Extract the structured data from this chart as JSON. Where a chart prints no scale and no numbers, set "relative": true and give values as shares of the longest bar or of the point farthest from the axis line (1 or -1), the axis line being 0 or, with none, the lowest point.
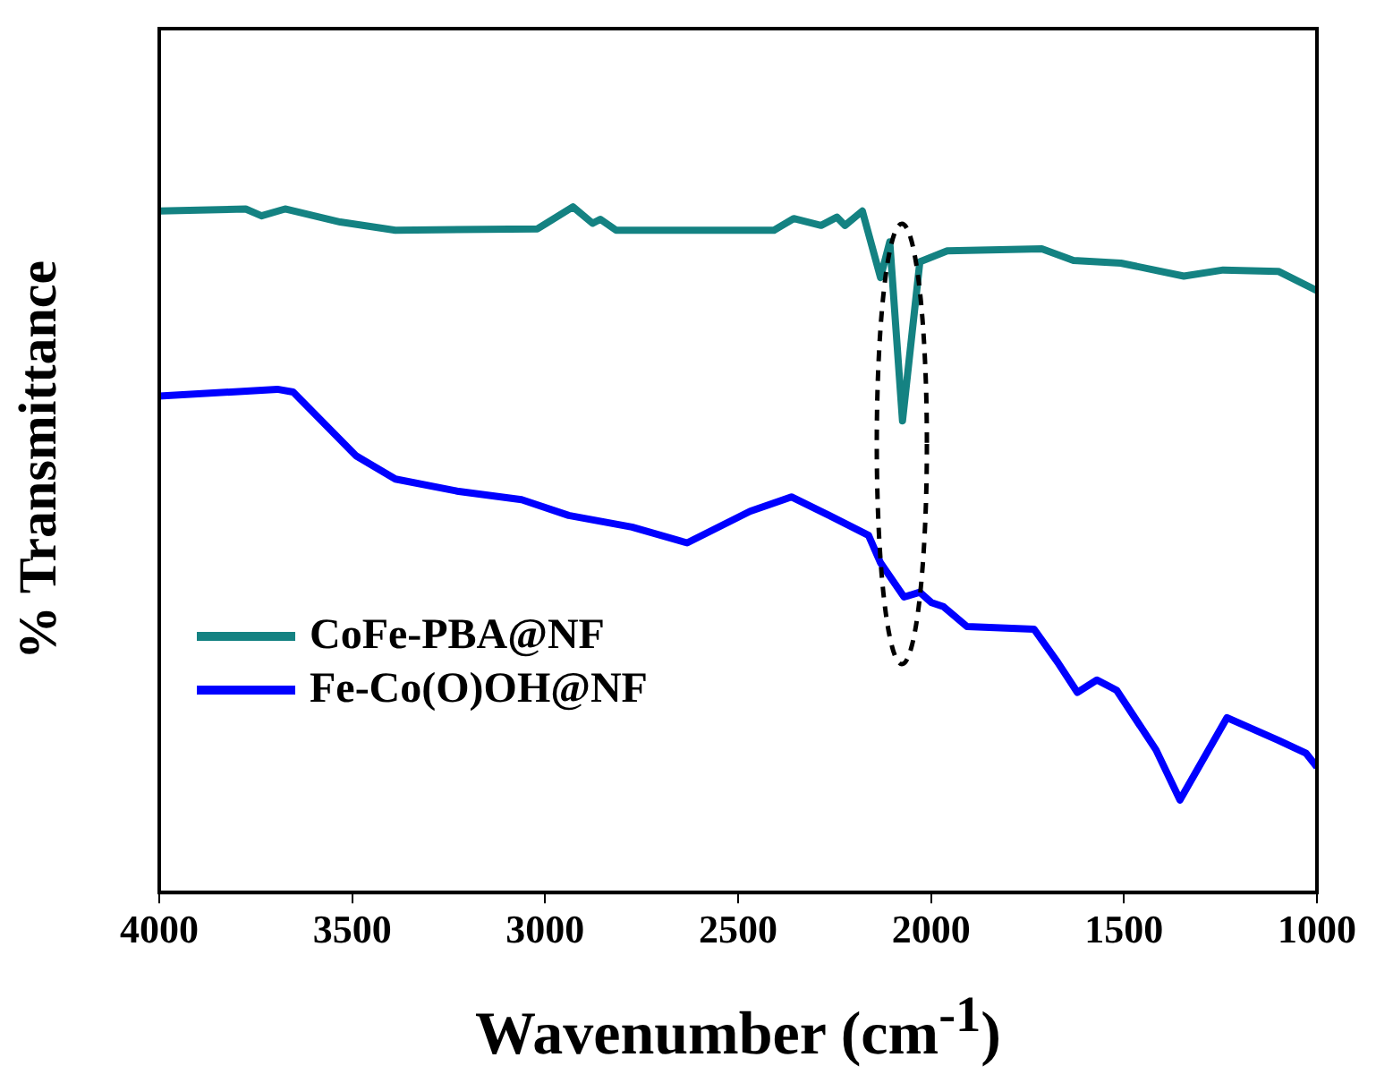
{
  "chart_data": {
    "type": "line",
    "xlabel": "Wavenumber (cm$^{-1}$)",
    "ylabel": "% Transmittance",
    "relative": true,
    "xlim": [
      4000,
      1000
    ],
    "xticks": [
      4000,
      3500,
      3000,
      2500,
      2000,
      1500,
      1000
    ],
    "legend": "bottom left",
    "grid": false,
    "marker": "none",
    "series": [
      {
        "name": "CoFe-PBA@NF",
        "color": "#148282",
        "x": [
          4000,
          3776,
          3735,
          3674,
          3531,
          3388,
          3020,
          2928,
          2877,
          2857,
          2816,
          2407,
          2356,
          2285,
          2244,
          2223,
          2178,
          2131,
          2107,
          2074,
          2029,
          1958,
          1713,
          1631,
          1508,
          1345,
          1243,
          1100,
          1000
        ],
        "values": [
          0.994,
          0.997,
          0.987,
          0.997,
          0.978,
          0.966,
          0.968,
          1,
          0.976,
          0.982,
          0.966,
          0.966,
          0.983,
          0.973,
          0.985,
          0.973,
          0.994,
          0.897,
          0.949,
          0.688,
          0.92,
          0.936,
          0.939,
          0.922,
          0.918,
          0.899,
          0.908,
          0.906,
          0.878
        ]
      },
      {
        "name": "Fe-Co(O)OH@NF",
        "color": "#0000ff",
        "x": [
          4000,
          3694,
          3653,
          3490,
          3388,
          3224,
          3061,
          2939,
          2775,
          2632,
          2469,
          2362,
          2264,
          2162,
          2131,
          2070,
          2029,
          1999,
          1968,
          1907,
          1733,
          1672,
          1621,
          1570,
          1519,
          1417,
          1355,
          1233,
          1100,
          1028,
          1000
        ],
        "values": [
          0.724,
          0.734,
          0.73,
          0.637,
          0.603,
          0.585,
          0.573,
          0.55,
          0.533,
          0.51,
          0.556,
          0.577,
          0.55,
          0.521,
          0.481,
          0.431,
          0.438,
          0.423,
          0.417,
          0.388,
          0.384,
          0.336,
          0.292,
          0.31,
          0.295,
          0.208,
          0.135,
          0.255,
          0.222,
          0.203,
          0.183
        ]
      }
    ]
  }
}
